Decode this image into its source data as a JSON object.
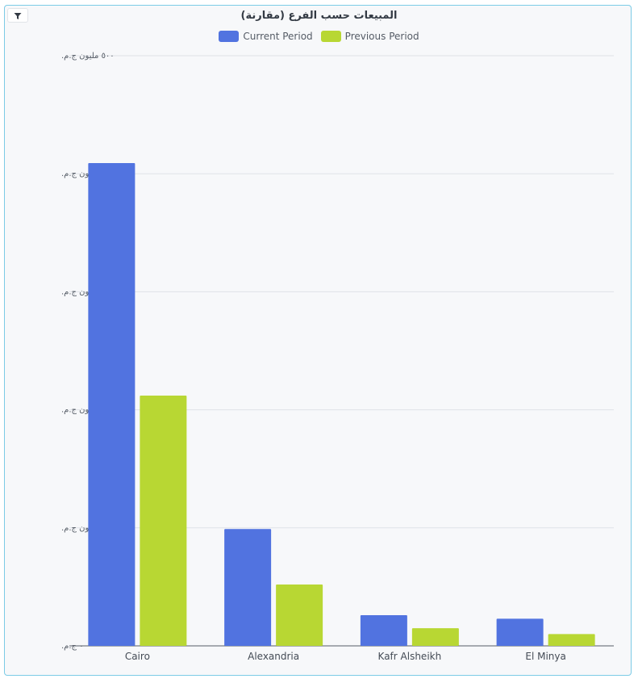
{
  "chart_data": {
    "type": "bar",
    "title": "المبيعات حسب الفرع (مقارنة)",
    "categories": [
      "Cairo",
      "Alexandria",
      "Kafr Alsheikh",
      "El Minya"
    ],
    "series": [
      {
        "name": "Current Period",
        "color": "#5173e0",
        "values": [
          409,
          99,
          26,
          23
        ]
      },
      {
        "name": "Previous Period",
        "color": "#b8d733",
        "values": [
          212,
          52,
          15,
          10
        ]
      }
    ],
    "ylim": [
      0,
      500
    ],
    "yticks": [
      0,
      100,
      200,
      300,
      400,
      500
    ],
    "ytick_labels": [
      "٠ ج.م.",
      "١٠٠ مليون ج.م.",
      "٢٠٠ مليون ج.م.",
      "٣٠٠ مليون ج.م.",
      "٤٠٠ مليون ج.م.",
      "٥٠٠ مليون ج.م."
    ],
    "grid": true,
    "legend_position": "top-center"
  },
  "icons": {
    "filter": "filter-icon"
  }
}
